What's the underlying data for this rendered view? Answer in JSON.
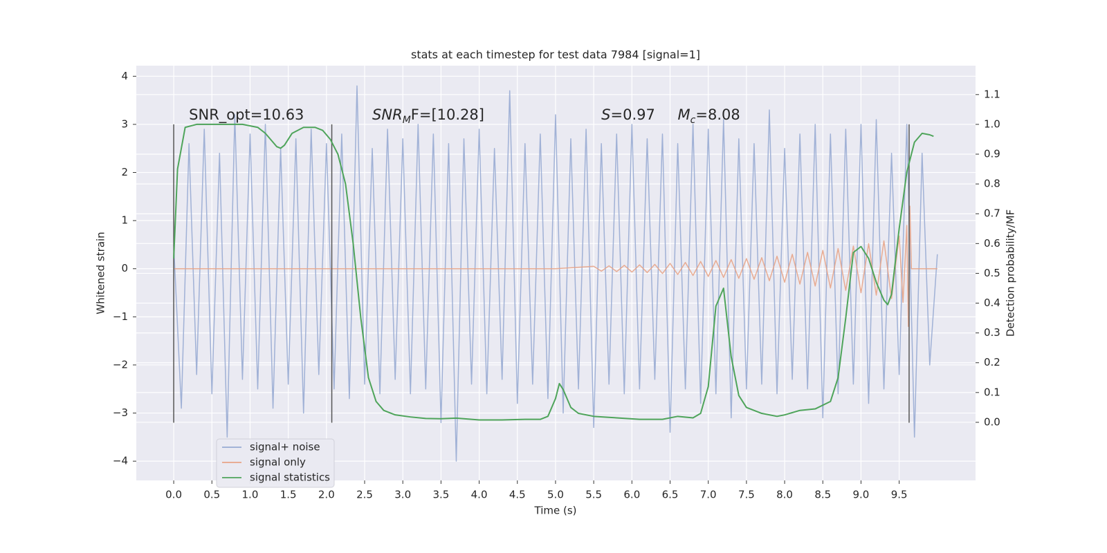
{
  "chart_data": {
    "type": "line",
    "title": "stats at each timestep for test data 7984 [signal=1]",
    "xlabel": "Time (s)",
    "ylabel": "Whitened strain",
    "y2label": "Detection probability/MF",
    "xlim": [
      -0.49,
      10.5
    ],
    "ylim": [
      -4.4,
      4.22
    ],
    "y2lim": [
      -0.195,
      1.197
    ],
    "xticks": [
      {
        "value": 0,
        "label": "0.0"
      },
      {
        "value": 0.5,
        "label": "0.5"
      },
      {
        "value": 1,
        "label": "1.0"
      },
      {
        "value": 1.5,
        "label": "1.5"
      },
      {
        "value": 2,
        "label": "2.0"
      },
      {
        "value": 2.5,
        "label": "2.5"
      },
      {
        "value": 3,
        "label": "3.0"
      },
      {
        "value": 3.5,
        "label": "3.5"
      },
      {
        "value": 4,
        "label": "4.0"
      },
      {
        "value": 4.5,
        "label": "4.5"
      },
      {
        "value": 5,
        "label": "5.0"
      },
      {
        "value": 5.5,
        "label": "5.5"
      },
      {
        "value": 6,
        "label": "6.0"
      },
      {
        "value": 6.5,
        "label": "6.5"
      },
      {
        "value": 7,
        "label": "7.0"
      },
      {
        "value": 7.5,
        "label": "7.5"
      },
      {
        "value": 8,
        "label": "8.0"
      },
      {
        "value": 8.5,
        "label": "8.5"
      },
      {
        "value": 9,
        "label": "9.0"
      },
      {
        "value": 9.5,
        "label": "9.5"
      }
    ],
    "yticks": [
      {
        "value": -4,
        "label": "−4"
      },
      {
        "value": -3,
        "label": "−3"
      },
      {
        "value": -2,
        "label": "−2"
      },
      {
        "value": -1,
        "label": "−1"
      },
      0,
      1,
      2,
      3,
      4
    ],
    "y2ticks": [
      {
        "value": 0,
        "label": "0.0"
      },
      {
        "value": 0.1,
        "label": "0.1"
      },
      {
        "value": 0.2,
        "label": "0.2"
      },
      {
        "value": 0.3,
        "label": "0.3"
      },
      {
        "value": 0.4,
        "label": "0.4"
      },
      {
        "value": 0.5,
        "label": "0.5"
      },
      {
        "value": 0.6,
        "label": "0.6"
      },
      {
        "value": 0.7,
        "label": "0.7"
      },
      {
        "value": 0.8,
        "label": "0.8"
      },
      {
        "value": 0.9,
        "label": "0.9"
      },
      {
        "value": 1.0,
        "label": "1.0"
      },
      {
        "value": 1.1,
        "label": "1.1"
      }
    ],
    "grid": true,
    "legend": "lower left",
    "vlines": {
      "x": [
        0,
        2.07,
        9.63
      ],
      "ymin": -3.2,
      "ymax": 3.0,
      "color": "#555555"
    },
    "annotations": [
      {
        "x": 0.2,
        "y": 3.1,
        "segments": [
          {
            "text": "SNR_opt=10.63",
            "style": "normal"
          }
        ]
      },
      {
        "x": 2.6,
        "y": 3.1,
        "segments": [
          {
            "text": "SNR",
            "style": "italic"
          },
          {
            "text": "M",
            "style": "sub"
          },
          {
            "text": "F=[10.28]",
            "style": "normal"
          }
        ]
      },
      {
        "x": 5.6,
        "y": 3.1,
        "segments": [
          {
            "text": "S",
            "style": "italic"
          },
          {
            "text": "=0.97",
            "style": "normal"
          }
        ]
      },
      {
        "x": 6.6,
        "y": 3.1,
        "segments": [
          {
            "text": "M",
            "style": "italic"
          },
          {
            "text": "c",
            "style": "sub"
          },
          {
            "text": "=8.08",
            "style": "normal"
          }
        ]
      }
    ],
    "series": [
      {
        "name": "signal+ noise",
        "color": "#98abd3",
        "axis": "y",
        "x": [
          0,
          0.1,
          0.2,
          0.3,
          0.4,
          0.5,
          0.6,
          0.7,
          0.8,
          0.9,
          1,
          1.1,
          1.2,
          1.3,
          1.4,
          1.5,
          1.6,
          1.7,
          1.8,
          1.9,
          2,
          2.1,
          2.2,
          2.3,
          2.4,
          2.5,
          2.6,
          2.7,
          2.8,
          2.9,
          3,
          3.1,
          3.2,
          3.3,
          3.4,
          3.5,
          3.6,
          3.7,
          3.8,
          3.9,
          4,
          4.1,
          4.2,
          4.3,
          4.4,
          4.5,
          4.6,
          4.7,
          4.8,
          4.9,
          5,
          5.1,
          5.2,
          5.3,
          5.4,
          5.5,
          5.6,
          5.7,
          5.8,
          5.9,
          6,
          6.1,
          6.2,
          6.3,
          6.4,
          6.5,
          6.6,
          6.7,
          6.8,
          6.9,
          7,
          7.1,
          7.2,
          7.3,
          7.4,
          7.5,
          7.6,
          7.7,
          7.8,
          7.9,
          8,
          8.1,
          8.2,
          8.3,
          8.4,
          8.5,
          8.6,
          8.7,
          8.8,
          8.9,
          9,
          9.1,
          9.2,
          9.3,
          9.4,
          9.5,
          9.6,
          9.7,
          9.8,
          9.9,
          10
        ],
        "values": [
          0.5,
          -2.9,
          2.6,
          -2.2,
          2.9,
          -2.6,
          2.4,
          -3.5,
          3.2,
          -2.3,
          2.8,
          -2.5,
          3.0,
          -2.9,
          2.5,
          -2.4,
          2.7,
          -3.0,
          2.9,
          -2.2,
          2.6,
          -2.5,
          2.8,
          -2.7,
          3.8,
          -2.4,
          2.5,
          -2.6,
          2.9,
          -2.3,
          2.7,
          -2.6,
          3.0,
          -2.5,
          2.8,
          -3.2,
          2.6,
          -4.0,
          2.7,
          -2.4,
          2.9,
          -2.6,
          2.5,
          -2.3,
          3.7,
          -2.8,
          2.6,
          -2.4,
          2.8,
          -2.7,
          3.2,
          -3.0,
          2.7,
          -2.5,
          2.9,
          -3.3,
          2.6,
          -2.4,
          2.8,
          -2.6,
          3.0,
          -2.5,
          2.7,
          -2.3,
          2.8,
          -3.4,
          2.6,
          -2.5,
          3.0,
          -2.8,
          2.9,
          -2.6,
          3.1,
          -3.1,
          2.7,
          -2.5,
          2.6,
          -2.4,
          3.3,
          -2.6,
          2.5,
          -2.3,
          2.8,
          -2.5,
          3.0,
          -3.1,
          2.8,
          -2.6,
          2.9,
          -2.4,
          3.0,
          -2.8,
          3.1,
          -2.5,
          2.4,
          -2.2,
          3.0,
          -3.5,
          2.4,
          -2.0,
          0.3
        ]
      },
      {
        "name": "signal only",
        "color": "#e8a487",
        "axis": "y",
        "x": [
          0,
          5.0,
          5.5,
          5.6,
          5.7,
          5.8,
          5.9,
          6.0,
          6.1,
          6.2,
          6.3,
          6.4,
          6.5,
          6.6,
          6.7,
          6.8,
          6.9,
          7.0,
          7.1,
          7.2,
          7.3,
          7.4,
          7.5,
          7.6,
          7.7,
          7.8,
          7.9,
          8.0,
          8.1,
          8.2,
          8.3,
          8.4,
          8.5,
          8.6,
          8.7,
          8.8,
          8.9,
          9.0,
          9.1,
          9.2,
          9.3,
          9.4,
          9.5,
          9.55,
          9.6,
          9.62,
          9.64,
          9.66,
          10.0
        ],
        "values": [
          0,
          0,
          0.05,
          -0.05,
          0.06,
          -0.06,
          0.07,
          -0.07,
          0.08,
          -0.08,
          0.09,
          -0.1,
          0.11,
          -0.12,
          0.13,
          -0.14,
          0.15,
          -0.16,
          0.17,
          -0.18,
          0.19,
          -0.2,
          0.21,
          -0.22,
          0.23,
          -0.25,
          0.26,
          -0.28,
          0.3,
          -0.32,
          0.34,
          -0.36,
          0.38,
          -0.4,
          0.42,
          -0.45,
          0.47,
          -0.5,
          0.52,
          -0.55,
          0.58,
          -0.62,
          0.68,
          -0.7,
          0.9,
          -1.2,
          1.3,
          0,
          0
        ]
      },
      {
        "name": "signal statistics",
        "color": "#4ea45a",
        "axis": "y2",
        "x": [
          0,
          0.05,
          0.1,
          0.15,
          0.3,
          0.6,
          0.9,
          1.1,
          1.2,
          1.3,
          1.35,
          1.4,
          1.45,
          1.55,
          1.7,
          1.85,
          1.95,
          2.05,
          2.15,
          2.25,
          2.35,
          2.45,
          2.55,
          2.65,
          2.75,
          2.9,
          3.1,
          3.3,
          3.5,
          3.7,
          4.0,
          4.3,
          4.6,
          4.8,
          4.9,
          5.0,
          5.05,
          5.1,
          5.2,
          5.3,
          5.5,
          5.8,
          6.1,
          6.4,
          6.6,
          6.8,
          6.9,
          7.0,
          7.1,
          7.2,
          7.3,
          7.4,
          7.5,
          7.7,
          7.9,
          8.0,
          8.2,
          8.4,
          8.6,
          8.7,
          8.8,
          8.9,
          9.0,
          9.1,
          9.2,
          9.3,
          9.35,
          9.4,
          9.5,
          9.6,
          9.7,
          9.8,
          9.9,
          9.95
        ],
        "values": [
          0.55,
          0.85,
          0.92,
          0.99,
          1.0,
          1.0,
          1.0,
          0.99,
          0.97,
          0.94,
          0.925,
          0.92,
          0.93,
          0.97,
          0.99,
          0.99,
          0.98,
          0.95,
          0.9,
          0.8,
          0.6,
          0.35,
          0.15,
          0.07,
          0.04,
          0.025,
          0.018,
          0.013,
          0.012,
          0.014,
          0.008,
          0.008,
          0.01,
          0.01,
          0.02,
          0.08,
          0.13,
          0.11,
          0.05,
          0.03,
          0.02,
          0.015,
          0.01,
          0.01,
          0.02,
          0.015,
          0.03,
          0.12,
          0.39,
          0.45,
          0.22,
          0.09,
          0.05,
          0.03,
          0.02,
          0.025,
          0.04,
          0.045,
          0.07,
          0.15,
          0.35,
          0.57,
          0.59,
          0.55,
          0.47,
          0.41,
          0.395,
          0.43,
          0.65,
          0.84,
          0.94,
          0.97,
          0.965,
          0.96
        ]
      }
    ]
  }
}
